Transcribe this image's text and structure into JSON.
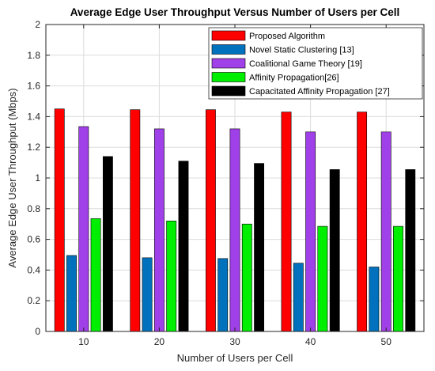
{
  "chart_data": {
    "type": "bar",
    "title": "Average Edge User Throughput Versus Number of Users per Cell",
    "xlabel": "Number of Users per Cell",
    "ylabel": "Average Edge User Throughput (Mbps)",
    "categories": [
      "10",
      "20",
      "30",
      "40",
      "50"
    ],
    "ylim": [
      0,
      2
    ],
    "yticks": [
      0,
      0.2,
      0.4,
      0.6,
      0.8,
      1,
      1.2,
      1.4,
      1.6,
      1.8,
      2
    ],
    "ytick_labels": [
      "0",
      "0.2",
      "0.4",
      "0.6",
      "0.8",
      "1",
      "1.2",
      "1.4",
      "1.6",
      "1.8",
      "2"
    ],
    "grid": true,
    "legend_position": "top-right",
    "series": [
      {
        "name": "Proposed Algorithm",
        "color": "#ff0000",
        "values": [
          1.45,
          1.445,
          1.445,
          1.43,
          1.43
        ]
      },
      {
        "name": "Novel Static Clustering [13]",
        "color": "#0072bd",
        "values": [
          0.495,
          0.48,
          0.475,
          0.445,
          0.42
        ]
      },
      {
        "name": "Coalitional Game Theory [19]",
        "color": "#a040e8",
        "values": [
          1.335,
          1.32,
          1.32,
          1.3,
          1.3
        ]
      },
      {
        "name": "Affinity Propagation[26]",
        "color": "#00ee00",
        "values": [
          0.735,
          0.72,
          0.7,
          0.685,
          0.685
        ]
      },
      {
        "name": "Capacitated Affinity Propagation [27]",
        "color": "#000000",
        "values": [
          1.14,
          1.11,
          1.095,
          1.055,
          1.055
        ]
      }
    ]
  }
}
